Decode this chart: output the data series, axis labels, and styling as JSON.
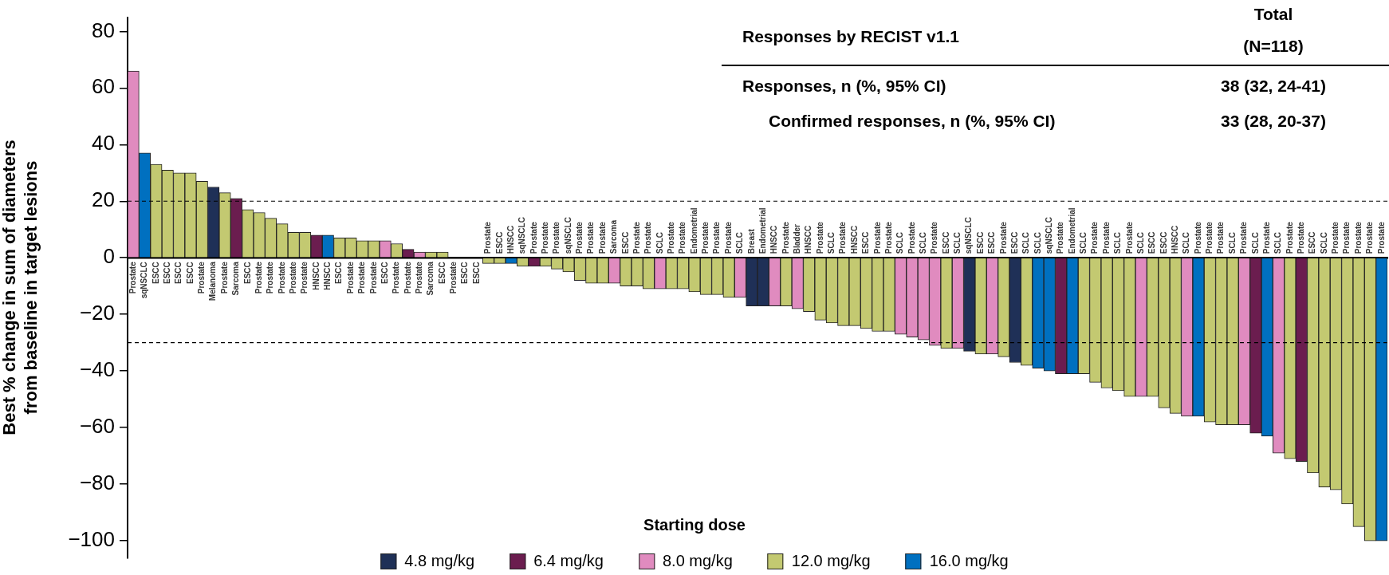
{
  "chart_data": {
    "type": "bar",
    "stacked": true,
    "ylabel": "Best % change in sum of diameters\nfrom baseline in target lesions",
    "legend_title": "Starting dose",
    "legend": "bottom",
    "grid": false,
    "annotations": [
      "Responses by RECIST v1.1",
      "Total",
      "(N=118)",
      "Responses, n (%, 95% CI)",
      "38 (32, 24-41)",
      "Confirmed responses, n (%, 95% CI)",
      "33 (28, 20-37)"
    ],
    "ylim": [
      -106,
      85
    ],
    "yticks": [
      {
        "value": -100,
        "label": "−100"
      },
      {
        "value": -80,
        "label": "−80"
      },
      {
        "value": -60,
        "label": "−60"
      },
      {
        "value": -40,
        "label": "−40"
      },
      {
        "value": -20,
        "label": "−20"
      },
      0,
      20,
      40,
      60,
      80
    ],
    "ref_lines": [
      {
        "axis": "y",
        "value": 20,
        "color": "#000000",
        "line_style": "dashed"
      },
      {
        "axis": "y",
        "value": -30,
        "color": "#000000",
        "line_style": "dashed"
      }
    ],
    "categories": [
      "Prostate",
      "sqNSCLC",
      "ESCC",
      "ESCC",
      "ESCC",
      "ESCC",
      "Prostate",
      "Melanoma",
      "Prostate",
      "Sarcoma",
      "ESCC",
      "Prostate",
      "Prostate",
      "Prostate",
      "Prostate",
      "Prostate",
      "HNSCC",
      "HNSCC",
      "ESCC",
      "Prostate",
      "Prostate",
      "Prostate",
      "ESCC",
      "Prostate",
      "Prostate",
      "Prostate",
      "Sarcoma",
      "ESCC",
      "Prostate",
      "ESCC",
      "ESCC",
      "Prostate",
      "ESCC",
      "HNSCC",
      "sqNSCLC",
      "Prostate",
      "Prostate",
      "Prostate",
      "sqNSCLC",
      "Prostate",
      "Prostate",
      "Prostate",
      "Sarcoma",
      "ESCC",
      "Prostate",
      "Prostate",
      "SCLC",
      "Prostate",
      "Prostate",
      "Endometrial",
      "Prostate",
      "Prostate",
      "Prostate",
      "SCLC",
      "Breast",
      "Endometrial",
      "HNSCC",
      "Prostate",
      "Bladder",
      "HNSCC",
      "Prostate",
      "SCLC",
      "Prostate",
      "HNSCC",
      "ESCC",
      "Prostate",
      "Prostate",
      "SCLC",
      "Prostate",
      "SCLC",
      "Prostate",
      "ESCC",
      "SCLC",
      "sqNSCLC",
      "ESCC",
      "ESCC",
      "Prostate",
      "ESCC",
      "SCLC",
      "SCLC",
      "sqNSCLC",
      "Prostate",
      "Endometrial",
      "SCLC",
      "Prostate",
      "Prostate",
      "SCLC",
      "Prostate",
      "SCLC",
      "ESCC",
      "ESCC",
      "HNSCC",
      "SCLC",
      "Prostate",
      "Prostate",
      "Prostate",
      "SCLC",
      "Prostate",
      "SCLC",
      "Prostate",
      "SCLC",
      "Prostate",
      "Prostate",
      "ESCC",
      "SCLC",
      "Prostate",
      "Prostate",
      "Prostate",
      "Prostate",
      "Prostate"
    ],
    "series": [
      {
        "name": "4.8 mg/kg",
        "color": "#1f3057",
        "values": [
          null,
          null,
          null,
          null,
          null,
          null,
          null,
          25,
          null,
          null,
          null,
          null,
          null,
          null,
          null,
          null,
          null,
          null,
          null,
          null,
          null,
          null,
          null,
          null,
          null,
          null,
          null,
          null,
          null,
          null,
          null,
          null,
          null,
          null,
          null,
          null,
          null,
          null,
          null,
          null,
          null,
          null,
          null,
          null,
          null,
          null,
          null,
          null,
          null,
          null,
          null,
          null,
          null,
          null,
          -17,
          -17,
          null,
          null,
          null,
          null,
          null,
          null,
          null,
          null,
          null,
          null,
          null,
          null,
          null,
          null,
          null,
          null,
          null,
          -33,
          null,
          null,
          null,
          -37,
          null,
          null,
          null,
          null,
          null,
          null,
          null,
          null,
          null,
          null,
          null,
          null,
          null,
          null,
          null,
          null,
          null,
          null,
          null,
          null,
          null,
          null,
          null,
          null,
          null,
          null,
          null,
          null,
          null,
          null,
          null,
          null
        ]
      },
      {
        "name": "6.4 mg/kg",
        "color": "#6b1d4f",
        "values": [
          null,
          null,
          null,
          null,
          null,
          null,
          null,
          null,
          null,
          21,
          null,
          null,
          null,
          null,
          null,
          null,
          8,
          null,
          null,
          null,
          null,
          null,
          null,
          null,
          3,
          null,
          null,
          null,
          null,
          null,
          null,
          null,
          null,
          null,
          null,
          -3,
          null,
          null,
          null,
          null,
          null,
          null,
          null,
          null,
          null,
          null,
          null,
          null,
          null,
          null,
          null,
          null,
          null,
          null,
          null,
          null,
          null,
          null,
          null,
          null,
          null,
          null,
          null,
          null,
          null,
          null,
          null,
          null,
          null,
          null,
          null,
          null,
          null,
          null,
          null,
          null,
          null,
          null,
          null,
          null,
          null,
          -41,
          null,
          null,
          null,
          null,
          null,
          null,
          null,
          null,
          null,
          null,
          null,
          null,
          null,
          null,
          null,
          null,
          -62,
          null,
          null,
          null,
          -72,
          null,
          null,
          null,
          null,
          null,
          null,
          null
        ]
      },
      {
        "name": "8.0 mg/kg",
        "color": "#e08bbf",
        "values": [
          66,
          null,
          null,
          null,
          null,
          null,
          null,
          null,
          null,
          null,
          null,
          null,
          null,
          null,
          null,
          null,
          null,
          null,
          null,
          null,
          null,
          null,
          6,
          null,
          null,
          2,
          null,
          null,
          null,
          null,
          null,
          null,
          null,
          null,
          null,
          null,
          null,
          null,
          null,
          null,
          null,
          null,
          -9,
          null,
          null,
          null,
          -11,
          null,
          null,
          null,
          null,
          null,
          null,
          -14,
          null,
          null,
          -17,
          null,
          -18,
          null,
          null,
          null,
          null,
          null,
          null,
          null,
          null,
          -27,
          -28,
          -29,
          -31,
          null,
          -32,
          null,
          null,
          -34,
          null,
          null,
          null,
          null,
          null,
          null,
          null,
          null,
          null,
          null,
          null,
          null,
          -49,
          null,
          null,
          null,
          -56,
          null,
          null,
          null,
          null,
          -59,
          null,
          null,
          -69,
          null,
          null,
          null,
          null,
          null,
          null,
          null,
          null,
          null
        ]
      },
      {
        "name": "12.0 mg/kg",
        "color": "#c3c971",
        "values": [
          null,
          null,
          33,
          31,
          30,
          30,
          27,
          null,
          23,
          null,
          17,
          16,
          14,
          12,
          9,
          9,
          null,
          null,
          7,
          7,
          6,
          6,
          null,
          5,
          null,
          null,
          2,
          2,
          0,
          0,
          0,
          -2,
          -2,
          null,
          -3,
          null,
          -3,
          -4,
          -5,
          -8,
          -9,
          -9,
          null,
          -10,
          -10,
          -11,
          null,
          -11,
          -11,
          -12,
          -13,
          -13,
          -14,
          null,
          null,
          null,
          null,
          -17,
          null,
          -19,
          -22,
          -23,
          -24,
          -24,
          -25,
          -26,
          -26,
          null,
          null,
          null,
          null,
          -32,
          null,
          null,
          -34,
          null,
          -35,
          null,
          -38,
          null,
          null,
          null,
          null,
          -41,
          -44,
          -46,
          -47,
          -49,
          null,
          -49,
          -53,
          -55,
          null,
          null,
          -58,
          -59,
          -59,
          null,
          null,
          null,
          null,
          -71,
          null,
          -76,
          -81,
          -82,
          -87,
          -95,
          -100,
          null
        ]
      },
      {
        "name": "16.0 mg/kg",
        "color": "#0070c0",
        "values": [
          null,
          37,
          null,
          null,
          null,
          null,
          null,
          null,
          null,
          null,
          null,
          null,
          null,
          null,
          null,
          null,
          null,
          8,
          null,
          null,
          null,
          null,
          null,
          null,
          null,
          null,
          null,
          null,
          null,
          null,
          null,
          null,
          null,
          -2,
          null,
          null,
          null,
          null,
          null,
          null,
          null,
          null,
          null,
          null,
          null,
          null,
          null,
          null,
          null,
          null,
          null,
          null,
          null,
          null,
          null,
          null,
          null,
          null,
          null,
          null,
          null,
          null,
          null,
          null,
          null,
          null,
          null,
          null,
          null,
          null,
          null,
          null,
          null,
          null,
          null,
          null,
          null,
          null,
          null,
          -39,
          -40,
          null,
          -41,
          null,
          null,
          null,
          null,
          null,
          null,
          null,
          null,
          null,
          null,
          -56,
          null,
          null,
          null,
          null,
          null,
          -63,
          null,
          null,
          null,
          null,
          null,
          null,
          null,
          null,
          null,
          -100
        ]
      }
    ]
  }
}
